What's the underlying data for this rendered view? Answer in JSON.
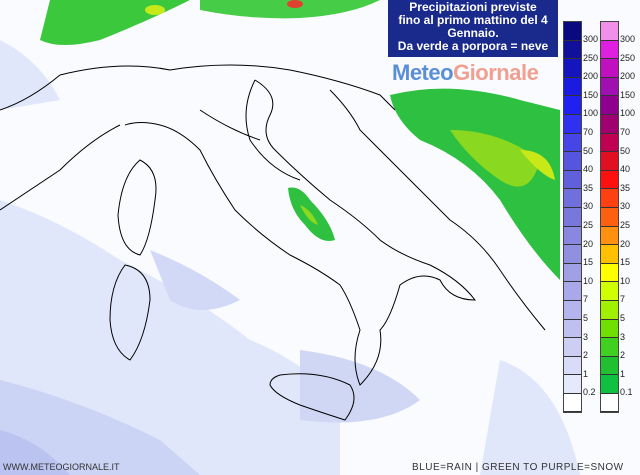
{
  "title": "Precipitazioni previste fino al primo mattino del 4 Gennaio. Da verde a porpora = neve",
  "title_lines": [
    "Precipitazioni previste",
    "fino al primo mattino del 4",
    "Gennaio.",
    "Da verde a porpora = neve"
  ],
  "logo": {
    "part1": "Meteo",
    "part2": "Giornale"
  },
  "legend_rain": {
    "labels": [
      "300",
      "250",
      "200",
      "150",
      "100",
      "70",
      "50",
      "40",
      "35",
      "30",
      "25",
      "20",
      "15",
      "10",
      "7",
      "5",
      "3",
      "2",
      "1",
      "0.2"
    ],
    "colors": [
      "#0a0a80",
      "#10109a",
      "#1515c0",
      "#1a1ae0",
      "#2020f0",
      "#3030f0",
      "#4545e8",
      "#5555e0",
      "#6060dc",
      "#7070dc",
      "#7878dc",
      "#8888e0",
      "#9090e0",
      "#a0a0e6",
      "#a8a8ea",
      "#b4b4ee",
      "#c0c0f0",
      "#cccef4",
      "#d8dcf8",
      "#e4eafc",
      "#ffffff"
    ]
  },
  "legend_snow": {
    "labels": [
      "300",
      "250",
      "200",
      "150",
      "100",
      "70",
      "50",
      "40",
      "35",
      "30",
      "25",
      "20",
      "15",
      "10",
      "7",
      "5",
      "3",
      "2",
      "1",
      "0.1"
    ],
    "colors": [
      "#f090e8",
      "#e020e0",
      "#c010c0",
      "#a010b0",
      "#900090",
      "#a00070",
      "#c00050",
      "#e01020",
      "#ff1010",
      "#ff4010",
      "#ff6010",
      "#ff9010",
      "#ffc000",
      "#ffff00",
      "#d0ff00",
      "#a0f000",
      "#70e000",
      "#40d020",
      "#20c030",
      "#10c040",
      "#ffffff"
    ]
  },
  "footer": {
    "site": "WWW.METEOGIORNALE.IT",
    "legend_note": "BLUE=RAIN | GREEN TO PURPLE=SNOW"
  }
}
